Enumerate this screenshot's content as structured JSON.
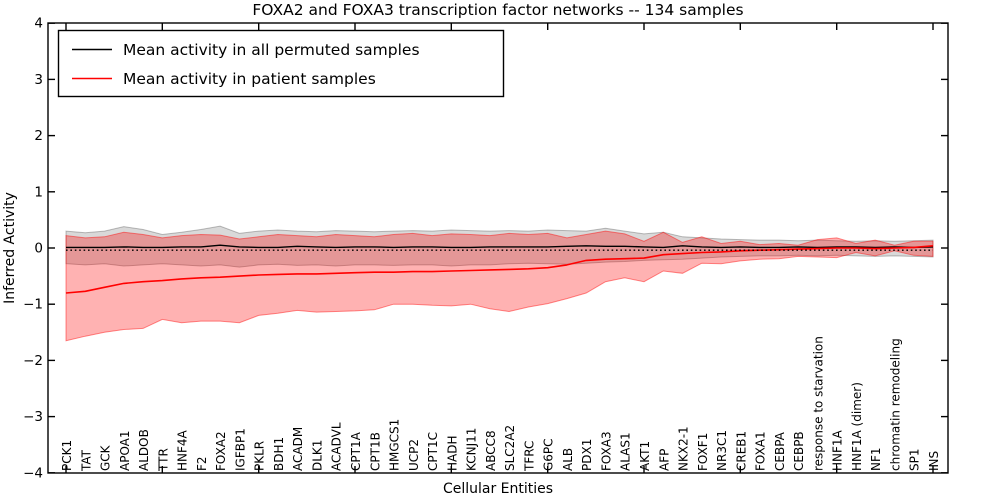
{
  "chart_data": {
    "type": "line",
    "title": "FOXA2 and FOXA3 transcription factor networks -- 134 samples",
    "xlabel": "Cellular Entities",
    "ylabel": "Inferred Activity",
    "ylim": [
      -4,
      4
    ],
    "yticks": [
      4,
      3,
      2,
      1,
      0,
      -1,
      -2,
      -3,
      -4
    ],
    "xtick_indices": [
      0,
      5,
      10,
      15,
      20,
      25,
      30,
      35,
      40,
      45
    ],
    "grid": "off",
    "legend_position": "upper-left",
    "background_color": "#ffffff",
    "axis_color": "#000000",
    "categories": [
      "PCK1",
      "TAT",
      "GCK",
      "APOA1",
      "ALDOB",
      "TTR",
      "HNF4A",
      "F2",
      "FOXA2",
      "IGFBP1",
      "PKLR",
      "BDH1",
      "ACADM",
      "DLK1",
      "ACADVL",
      "CPT1A",
      "CPT1B",
      "HMGCS1",
      "UCP2",
      "CPT1C",
      "HADH",
      "KCNJ11",
      "ABCC8",
      "SLC2A2",
      "TFRC",
      "G6PC",
      "ALB",
      "PDX1",
      "FOXA3",
      "ALAS1",
      "AKT1",
      "AFP",
      "NKX2-1",
      "FOXF1",
      "NR3C1",
      "CREB1",
      "FOXA1",
      "CEBPA",
      "CEBPB",
      "response to starvation",
      "HNF1A",
      "HNF1A (dimer)",
      "NF1",
      "chromatin remodeling",
      "SP1",
      "INS"
    ],
    "series": [
      {
        "name": "Mean activity in all permuted samples",
        "color": "#000000",
        "values": [
          0.01,
          0.01,
          0.01,
          0.02,
          0.01,
          0.01,
          0.02,
          0.02,
          0.05,
          0.02,
          0.01,
          0.01,
          0.03,
          0.02,
          0.01,
          0.02,
          0.02,
          0.01,
          0.02,
          0.02,
          0.01,
          0.01,
          0.02,
          0.02,
          0.02,
          0.02,
          0.03,
          0.04,
          0.03,
          0.03,
          0.02,
          0.01,
          0.04,
          0.02,
          0.01,
          0.02,
          0.01,
          0.01,
          0.02,
          0.01,
          0.02,
          0.02,
          0.01,
          0.02,
          0.01,
          0.02
        ]
      },
      {
        "name": "Mean activity in patient samples",
        "color": "#ff0000",
        "values": [
          -0.8,
          -0.77,
          -0.7,
          -0.63,
          -0.6,
          -0.58,
          -0.55,
          -0.53,
          -0.52,
          -0.5,
          -0.48,
          -0.47,
          -0.46,
          -0.46,
          -0.45,
          -0.44,
          -0.43,
          -0.43,
          -0.42,
          -0.42,
          -0.41,
          -0.4,
          -0.39,
          -0.38,
          -0.37,
          -0.35,
          -0.3,
          -0.22,
          -0.2,
          -0.19,
          -0.18,
          -0.12,
          -0.1,
          -0.08,
          -0.07,
          -0.05,
          -0.04,
          -0.03,
          -0.02,
          -0.01,
          0.0,
          0.0,
          -0.01,
          0.0,
          0.01,
          0.04
        ]
      }
    ],
    "bands": [
      {
        "name": "permuted-samples-band",
        "fill": "rgba(0,0,0,0.15)",
        "edge": "rgba(0,0,0,0.25)",
        "upper": [
          0.3,
          0.27,
          0.3,
          0.38,
          0.33,
          0.24,
          0.28,
          0.33,
          0.39,
          0.26,
          0.3,
          0.32,
          0.3,
          0.29,
          0.31,
          0.3,
          0.29,
          0.3,
          0.31,
          0.3,
          0.32,
          0.31,
          0.3,
          0.31,
          0.3,
          0.32,
          0.31,
          0.3,
          0.35,
          0.3,
          0.25,
          0.28,
          0.2,
          0.18,
          0.16,
          0.15,
          0.14,
          0.14,
          0.13,
          0.14,
          0.13,
          0.12,
          0.13,
          0.12,
          0.13,
          0.14
        ],
        "lower": [
          -0.28,
          -0.3,
          -0.28,
          -0.32,
          -0.3,
          -0.28,
          -0.3,
          -0.32,
          -0.3,
          -0.34,
          -0.3,
          -0.29,
          -0.31,
          -0.3,
          -0.32,
          -0.3,
          -0.3,
          -0.31,
          -0.3,
          -0.3,
          -0.32,
          -0.3,
          -0.3,
          -0.28,
          -0.27,
          -0.28,
          -0.29,
          -0.27,
          -0.25,
          -0.24,
          -0.22,
          -0.21,
          -0.2,
          -0.18,
          -0.16,
          -0.15,
          -0.14,
          -0.14,
          -0.13,
          -0.14,
          -0.13,
          -0.14,
          -0.15,
          -0.14,
          -0.15,
          -0.16
        ]
      },
      {
        "name": "patient-samples-band",
        "fill": "rgba(255,0,0,0.30)",
        "edge": "rgba(255,0,0,0.45)",
        "upper": [
          0.22,
          0.18,
          0.2,
          0.28,
          0.24,
          0.18,
          0.22,
          0.24,
          0.23,
          0.16,
          0.2,
          0.24,
          0.22,
          0.2,
          0.24,
          0.22,
          0.2,
          0.24,
          0.26,
          0.22,
          0.25,
          0.24,
          0.22,
          0.26,
          0.24,
          0.26,
          0.18,
          0.24,
          0.3,
          0.25,
          0.12,
          0.28,
          0.1,
          0.2,
          0.08,
          0.12,
          0.06,
          0.08,
          0.05,
          0.15,
          0.18,
          0.08,
          0.14,
          0.05,
          0.12,
          0.12
        ],
        "lower": [
          -1.65,
          -1.57,
          -1.5,
          -1.45,
          -1.43,
          -1.27,
          -1.33,
          -1.3,
          -1.3,
          -1.33,
          -1.2,
          -1.16,
          -1.11,
          -1.14,
          -1.13,
          -1.12,
          -1.1,
          -1.0,
          -1.0,
          -1.02,
          -1.03,
          -1.0,
          -1.08,
          -1.13,
          -1.05,
          -0.99,
          -0.9,
          -0.8,
          -0.6,
          -0.53,
          -0.6,
          -0.41,
          -0.45,
          -0.27,
          -0.28,
          -0.23,
          -0.2,
          -0.19,
          -0.15,
          -0.16,
          -0.17,
          -0.08,
          -0.14,
          -0.05,
          -0.13,
          -0.15
        ]
      }
    ],
    "reference_line": {
      "value": -0.04,
      "style": "dotted",
      "color": "#000000"
    }
  }
}
